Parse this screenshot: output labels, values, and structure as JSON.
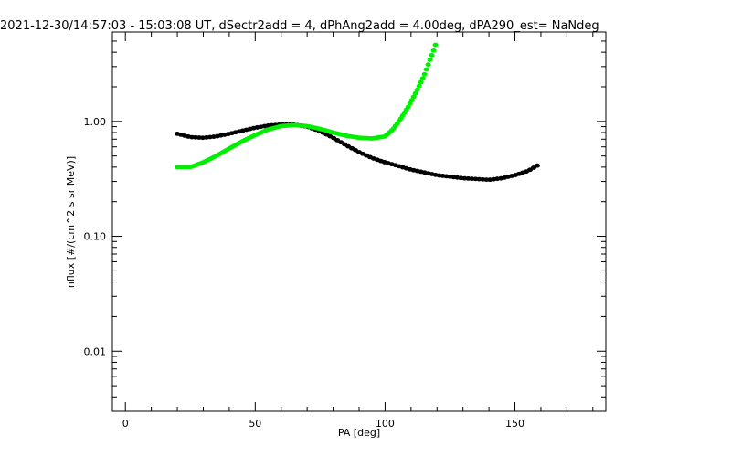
{
  "chart_data": {
    "type": "scatter",
    "title": "2021-12-30/14:57:03 - 15:03:08 UT, dSectr2add = 4, dPhAng2add = 4.00deg, dPA290_est=    NaNdeg",
    "xlabel": "PA [deg]",
    "ylabel": "nflux [#/(cm^2 s sr MeV)]",
    "xlim": [
      -5,
      185
    ],
    "ylim": [
      0.003,
      6
    ],
    "yscale": "log",
    "grid": false,
    "x_ticks": [
      {
        "value": 0,
        "label": "0"
      },
      {
        "value": 50,
        "label": "50"
      },
      {
        "value": 100,
        "label": "100"
      },
      {
        "value": 150,
        "label": "150"
      }
    ],
    "y_ticks": [
      {
        "value": 0.01,
        "label": "0.01"
      },
      {
        "value": 0.1,
        "label": "0.10"
      },
      {
        "value": 1,
        "label": "1.00"
      }
    ],
    "series": [
      {
        "color": "#000000",
        "x": [
          20,
          25,
          30,
          35,
          40,
          45,
          50,
          55,
          60,
          65,
          70,
          75,
          80,
          85,
          90,
          95,
          100,
          105,
          110,
          115,
          120,
          125,
          130,
          135,
          140,
          145,
          150,
          155,
          160
        ],
        "values": [
          0.78,
          0.73,
          0.72,
          0.74,
          0.78,
          0.83,
          0.88,
          0.92,
          0.94,
          0.94,
          0.9,
          0.82,
          0.72,
          0.62,
          0.54,
          0.48,
          0.44,
          0.41,
          0.38,
          0.36,
          0.34,
          0.33,
          0.32,
          0.315,
          0.31,
          0.32,
          0.34,
          0.37,
          0.43
        ]
      },
      {
        "color": "#00ee00",
        "x": [
          20,
          25,
          30,
          35,
          40,
          45,
          50,
          55,
          60,
          65,
          70,
          75,
          80,
          85,
          90,
          95,
          100,
          103,
          106,
          109,
          112,
          115,
          117,
          119,
          120
        ],
        "values": [
          0.4,
          0.4,
          0.44,
          0.5,
          0.58,
          0.67,
          0.76,
          0.85,
          0.91,
          0.93,
          0.91,
          0.86,
          0.8,
          0.75,
          0.72,
          0.71,
          0.74,
          0.85,
          1.05,
          1.35,
          1.8,
          2.5,
          3.3,
          4.3,
          5.2
        ]
      }
    ]
  }
}
